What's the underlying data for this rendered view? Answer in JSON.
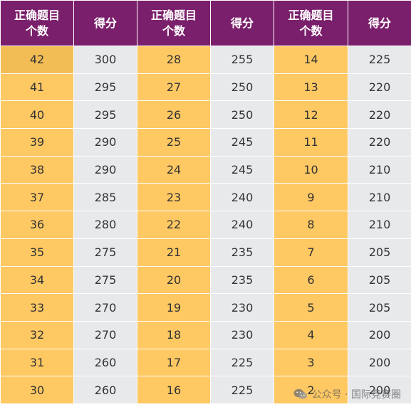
{
  "table": {
    "headers": [
      "正确题目\n个数",
      "得分",
      "正确题目\n个数",
      "得分",
      "正确题目\n个数",
      "得分"
    ],
    "rows": [
      [
        "42",
        "300",
        "28",
        "255",
        "14",
        "225"
      ],
      [
        "41",
        "295",
        "27",
        "250",
        "13",
        "220"
      ],
      [
        "40",
        "295",
        "26",
        "250",
        "12",
        "220"
      ],
      [
        "39",
        "290",
        "25",
        "245",
        "11",
        "220"
      ],
      [
        "38",
        "290",
        "24",
        "245",
        "10",
        "210"
      ],
      [
        "37",
        "285",
        "23",
        "240",
        "9",
        "210"
      ],
      [
        "36",
        "280",
        "22",
        "240",
        "8",
        "210"
      ],
      [
        "35",
        "275",
        "21",
        "235",
        "7",
        "205"
      ],
      [
        "34",
        "275",
        "20",
        "235",
        "6",
        "205"
      ],
      [
        "33",
        "270",
        "19",
        "230",
        "5",
        "205"
      ],
      [
        "32",
        "270",
        "18",
        "230",
        "4",
        "200"
      ],
      [
        "31",
        "260",
        "17",
        "225",
        "3",
        "200"
      ],
      [
        "30",
        "260",
        "16",
        "225",
        "2",
        "200"
      ]
    ]
  },
  "watermark": {
    "text": "公众号 · 国际竞赛圈",
    "icon": "wechat-logo-icon"
  },
  "colors": {
    "header_bg": "#7a1f6b",
    "count_bg": "#fec863",
    "count_highlight_bg": "#f3bd55",
    "score_bg": "#e8e9eb"
  }
}
